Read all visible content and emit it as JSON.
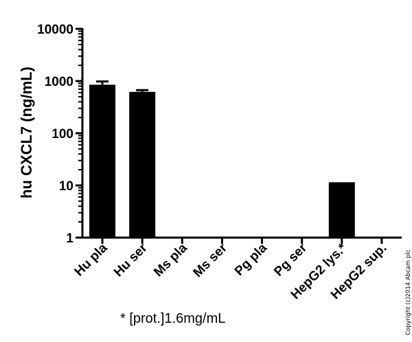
{
  "chart_data": {
    "type": "bar",
    "ylabel": "hu CXCL7 (ng/mL)",
    "yscale": "log",
    "ylim": [
      1,
      10000
    ],
    "yticks": [
      "1",
      "10",
      "100",
      "1000",
      "10000"
    ],
    "grid": false,
    "categories": [
      "Hu pla",
      "Hu ser",
      "Ms pla",
      "Ms ser",
      "Pg pla",
      "Pg ser",
      "HepG2 lys.*",
      "HepG2 sup."
    ],
    "values": [
      850,
      620,
      null,
      null,
      null,
      null,
      11.5,
      null
    ],
    "error_upper": [
      980,
      670,
      null,
      null,
      null,
      null,
      null,
      null
    ],
    "bar_color": "#000000"
  },
  "annotation": "* [prot.]1.6mg/mL",
  "copyright": "Copyright (c)2014 Abcam plc"
}
